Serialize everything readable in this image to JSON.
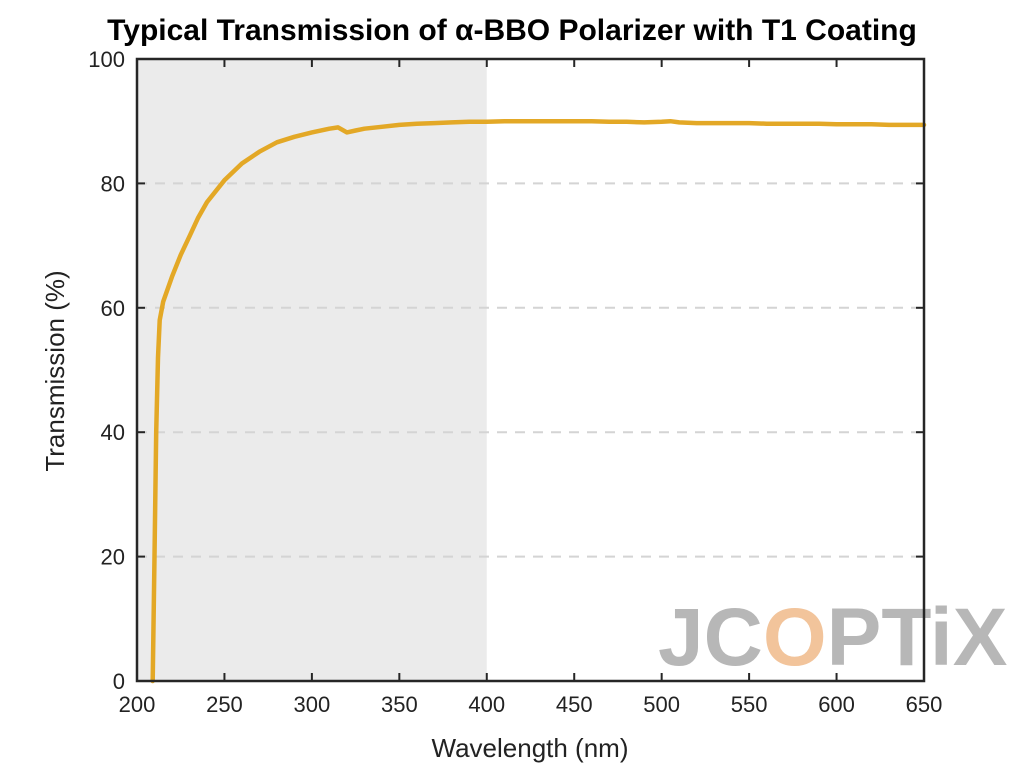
{
  "chart_data": {
    "type": "line",
    "title": "Typical Transmission of α-BBO Polarizer with T1 Coating",
    "xlabel": "Wavelength (nm)",
    "ylabel": "Transmission (%)",
    "xlim": [
      200,
      650
    ],
    "ylim": [
      0,
      100
    ],
    "xticks": [
      200,
      250,
      300,
      350,
      400,
      450,
      500,
      550,
      600,
      650
    ],
    "yticks": [
      0,
      20,
      40,
      60,
      80,
      100
    ],
    "grid": "horizontal dashed",
    "shaded_region": [
      200,
      400
    ],
    "series": [
      {
        "color": "#E3A826",
        "x": [
          209,
          210,
          211,
          212,
          213,
          215,
          220,
          225,
          230,
          235,
          240,
          250,
          260,
          270,
          280,
          290,
          300,
          310,
          315,
          320,
          325,
          330,
          340,
          350,
          360,
          370,
          380,
          390,
          400,
          410,
          420,
          430,
          440,
          450,
          460,
          470,
          480,
          490,
          500,
          505,
          510,
          520,
          530,
          540,
          550,
          560,
          570,
          580,
          590,
          600,
          610,
          620,
          630,
          640,
          650
        ],
        "values": [
          0,
          20,
          40,
          52,
          58,
          61,
          65,
          68.5,
          71.5,
          74.5,
          77,
          80.5,
          83.2,
          85.1,
          86.6,
          87.5,
          88.2,
          88.8,
          89,
          88.2,
          88.5,
          88.8,
          89.1,
          89.4,
          89.6,
          89.7,
          89.8,
          89.9,
          89.9,
          90,
          90,
          90,
          90,
          90,
          90,
          89.9,
          89.9,
          89.8,
          89.9,
          90,
          89.8,
          89.7,
          89.7,
          89.7,
          89.7,
          89.6,
          89.6,
          89.6,
          89.6,
          89.5,
          89.5,
          89.5,
          89.4,
          89.4,
          89.4
        ]
      }
    ]
  },
  "watermark": {
    "text_a": "JC",
    "text_b": "O",
    "text_c": "PTiX",
    "color_main": "#b7b7b7",
    "color_accent": "#f2c49b"
  }
}
